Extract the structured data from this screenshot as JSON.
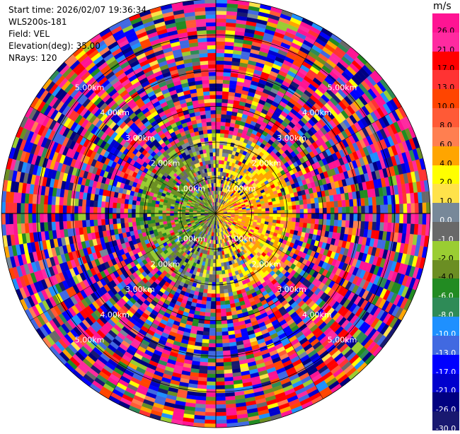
{
  "header": {
    "start_time": "Start time: 2026/02/07 19:36:34",
    "instrument": "WLS200s-181",
    "field": "Field: VEL",
    "elevation": "Elevation(deg): 35.00",
    "nrays": "NRays: 120"
  },
  "colorbar": {
    "unit": "m/s",
    "levels": [
      {
        "label": "26.0",
        "color": "#ff1493"
      },
      {
        "label": "21.0",
        "color": "#ff2aa0"
      },
      {
        "label": "17.0",
        "color": "#ff0000"
      },
      {
        "label": "13.0",
        "color": "#ff3333"
      },
      {
        "label": "10.0",
        "color": "#ff4500"
      },
      {
        "label": "8.0",
        "color": "#ff5a36"
      },
      {
        "label": "6.0",
        "color": "#ff7f50"
      },
      {
        "label": "4.0",
        "color": "#ffa500"
      },
      {
        "label": "2.0",
        "color": "#ffff00"
      },
      {
        "label": "1.0",
        "color": "#ffe24a"
      },
      {
        "label": "0.0",
        "color": "#778899"
      },
      {
        "label": "-1.0",
        "color": "#696969"
      },
      {
        "label": "-2.0",
        "color": "#9acd32"
      },
      {
        "label": "-4.0",
        "color": "#6b8e23"
      },
      {
        "label": "-6.0",
        "color": "#228b22"
      },
      {
        "label": "-8.0",
        "color": "#2e8b57"
      },
      {
        "label": "-10.0",
        "color": "#1e90ff"
      },
      {
        "label": "-13.0",
        "color": "#4169e1"
      },
      {
        "label": "-17.0",
        "color": "#0000ff"
      },
      {
        "label": "-21.0",
        "color": "#0000cd"
      },
      {
        "label": "-26.0",
        "color": "#000080"
      },
      {
        "label": "-30.0",
        "color": "#191970"
      }
    ]
  },
  "chart_data": {
    "type": "heatmap",
    "projection": "polar",
    "field": "VEL",
    "unit": "m/s",
    "n_rays": 120,
    "elevation_deg": 35.0,
    "range_rings_km": [
      1.0,
      2.0,
      3.0,
      4.0,
      5.0,
      6.0
    ],
    "range_ring_labels": [
      "1.00km",
      "2.00km",
      "3.00km",
      "4.00km",
      "5.00km",
      "6.00km"
    ],
    "max_range_km": 6.0,
    "description_of_pattern": {
      "inner_east_sector": "positive velocities (yellow/orange) within ~2 km",
      "inner_west_sector": "negative velocities (green) within ~2 km",
      "outer_ranges": "noisy values spanning full color scale"
    },
    "color_scale_min": -30.0,
    "color_scale_max": 30.0
  }
}
